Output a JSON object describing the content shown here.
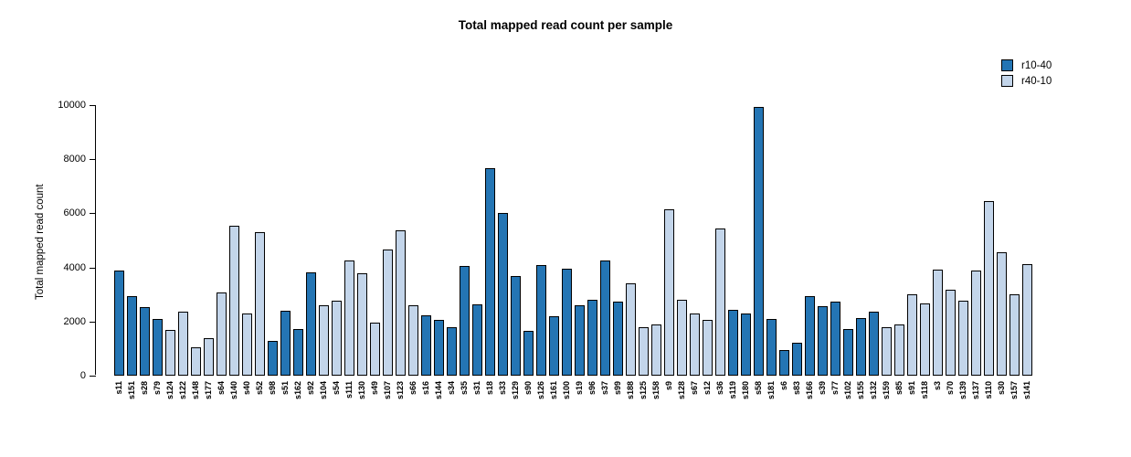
{
  "title": "Total mapped read count per sample",
  "y_axis_title": "Total mapped read count",
  "legend": {
    "items": [
      {
        "label": "r10-40",
        "color": "#2475B4"
      },
      {
        "label": "r40-10",
        "color": "#C3D5EA"
      }
    ]
  },
  "chart_data": {
    "type": "bar",
    "title": "Total mapped read count per sample",
    "xlabel": "",
    "ylabel": "Total mapped read count",
    "ylim": [
      0,
      10000
    ],
    "yticks": [
      0,
      2000,
      4000,
      6000,
      8000,
      10000
    ],
    "grid": false,
    "legend_position": "top-right",
    "series_colors": {
      "r10-40": "#2475B4",
      "r40-10": "#C3D5EA"
    },
    "bars": [
      {
        "sample": "s11",
        "value": 3900,
        "group": "r10-40"
      },
      {
        "sample": "s151",
        "value": 2950,
        "group": "r10-40"
      },
      {
        "sample": "s28",
        "value": 2550,
        "group": "r10-40"
      },
      {
        "sample": "s79",
        "value": 2100,
        "group": "r10-40"
      },
      {
        "sample": "s124",
        "value": 1700,
        "group": "r40-10"
      },
      {
        "sample": "s122",
        "value": 2380,
        "group": "r40-10"
      },
      {
        "sample": "s148",
        "value": 1060,
        "group": "r40-10"
      },
      {
        "sample": "s177",
        "value": 1400,
        "group": "r40-10"
      },
      {
        "sample": "s64",
        "value": 3080,
        "group": "r40-10"
      },
      {
        "sample": "s140",
        "value": 5550,
        "group": "r40-10"
      },
      {
        "sample": "s40",
        "value": 2300,
        "group": "r40-10"
      },
      {
        "sample": "s52",
        "value": 5300,
        "group": "r40-10"
      },
      {
        "sample": "s98",
        "value": 1300,
        "group": "r10-40"
      },
      {
        "sample": "s51",
        "value": 2400,
        "group": "r10-40"
      },
      {
        "sample": "s162",
        "value": 1730,
        "group": "r10-40"
      },
      {
        "sample": "s92",
        "value": 3820,
        "group": "r10-40"
      },
      {
        "sample": "s104",
        "value": 2600,
        "group": "r40-10"
      },
      {
        "sample": "s54",
        "value": 2780,
        "group": "r40-10"
      },
      {
        "sample": "s111",
        "value": 4260,
        "group": "r40-10"
      },
      {
        "sample": "s130",
        "value": 3780,
        "group": "r40-10"
      },
      {
        "sample": "s49",
        "value": 1960,
        "group": "r40-10"
      },
      {
        "sample": "s107",
        "value": 4660,
        "group": "r40-10"
      },
      {
        "sample": "s123",
        "value": 5370,
        "group": "r40-10"
      },
      {
        "sample": "s66",
        "value": 2600,
        "group": "r40-10"
      },
      {
        "sample": "s16",
        "value": 2220,
        "group": "r10-40"
      },
      {
        "sample": "s144",
        "value": 2050,
        "group": "r10-40"
      },
      {
        "sample": "s34",
        "value": 1800,
        "group": "r10-40"
      },
      {
        "sample": "s35",
        "value": 4050,
        "group": "r10-40"
      },
      {
        "sample": "s31",
        "value": 2630,
        "group": "r10-40"
      },
      {
        "sample": "s18",
        "value": 7660,
        "group": "r10-40"
      },
      {
        "sample": "s33",
        "value": 6010,
        "group": "r10-40"
      },
      {
        "sample": "s129",
        "value": 3680,
        "group": "r10-40"
      },
      {
        "sample": "s90",
        "value": 1670,
        "group": "r10-40"
      },
      {
        "sample": "s126",
        "value": 4090,
        "group": "r10-40"
      },
      {
        "sample": "s161",
        "value": 2180,
        "group": "r10-40"
      },
      {
        "sample": "s100",
        "value": 3950,
        "group": "r10-40"
      },
      {
        "sample": "s19",
        "value": 2600,
        "group": "r10-40"
      },
      {
        "sample": "s96",
        "value": 2800,
        "group": "r10-40"
      },
      {
        "sample": "s37",
        "value": 4250,
        "group": "r10-40"
      },
      {
        "sample": "s99",
        "value": 2720,
        "group": "r10-40"
      },
      {
        "sample": "s188",
        "value": 3420,
        "group": "r40-10"
      },
      {
        "sample": "s125",
        "value": 1800,
        "group": "r40-10"
      },
      {
        "sample": "s158",
        "value": 1880,
        "group": "r40-10"
      },
      {
        "sample": "s9",
        "value": 6140,
        "group": "r40-10"
      },
      {
        "sample": "s128",
        "value": 2800,
        "group": "r40-10"
      },
      {
        "sample": "s67",
        "value": 2310,
        "group": "r40-10"
      },
      {
        "sample": "s12",
        "value": 2070,
        "group": "r40-10"
      },
      {
        "sample": "s36",
        "value": 5440,
        "group": "r40-10"
      },
      {
        "sample": "s119",
        "value": 2430,
        "group": "r10-40"
      },
      {
        "sample": "s180",
        "value": 2300,
        "group": "r10-40"
      },
      {
        "sample": "s58",
        "value": 9940,
        "group": "r10-40"
      },
      {
        "sample": "s181",
        "value": 2110,
        "group": "r10-40"
      },
      {
        "sample": "s6",
        "value": 960,
        "group": "r10-40"
      },
      {
        "sample": "s83",
        "value": 1230,
        "group": "r10-40"
      },
      {
        "sample": "s166",
        "value": 2930,
        "group": "r10-40"
      },
      {
        "sample": "s39",
        "value": 2560,
        "group": "r10-40"
      },
      {
        "sample": "s77",
        "value": 2740,
        "group": "r10-40"
      },
      {
        "sample": "s102",
        "value": 1730,
        "group": "r10-40"
      },
      {
        "sample": "s155",
        "value": 2120,
        "group": "r10-40"
      },
      {
        "sample": "s132",
        "value": 2370,
        "group": "r10-40"
      },
      {
        "sample": "s159",
        "value": 1800,
        "group": "r40-10"
      },
      {
        "sample": "s85",
        "value": 1890,
        "group": "r40-10"
      },
      {
        "sample": "s91",
        "value": 3000,
        "group": "r40-10"
      },
      {
        "sample": "s118",
        "value": 2660,
        "group": "r40-10"
      },
      {
        "sample": "s3",
        "value": 3910,
        "group": "r40-10"
      },
      {
        "sample": "s70",
        "value": 3190,
        "group": "r40-10"
      },
      {
        "sample": "s139",
        "value": 2780,
        "group": "r40-10"
      },
      {
        "sample": "s137",
        "value": 3870,
        "group": "r40-10"
      },
      {
        "sample": "s110",
        "value": 6450,
        "group": "r40-10"
      },
      {
        "sample": "s30",
        "value": 4560,
        "group": "r40-10"
      },
      {
        "sample": "s157",
        "value": 2990,
        "group": "r40-10"
      },
      {
        "sample": "s141",
        "value": 4120,
        "group": "r40-10"
      }
    ]
  }
}
